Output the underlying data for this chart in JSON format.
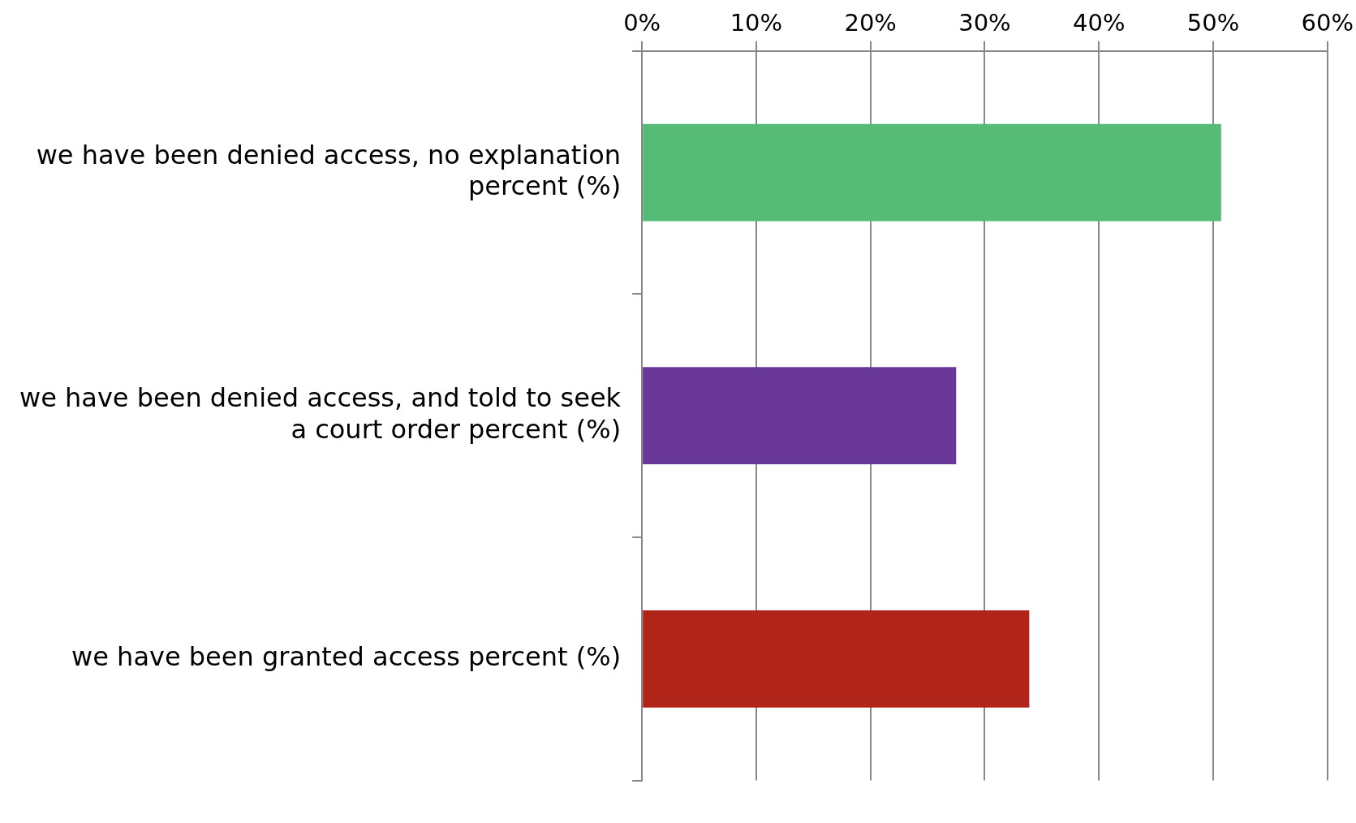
{
  "chart_data": {
    "type": "bar",
    "orientation": "horizontal",
    "categories": [
      "we have been denied access, no explanation percent (%)",
      "we have been denied access, and told to seek a court order percent (%)",
      "we have been granted access percent (%)"
    ],
    "values": [
      50.7,
      27.5,
      33.9
    ],
    "colors": [
      "#55bb77",
      "#693899",
      "#b0241a"
    ],
    "xlim": [
      0,
      60
    ],
    "xticks": [
      {
        "value": 0,
        "label": "0%"
      },
      {
        "value": 10,
        "label": "10%"
      },
      {
        "value": 20,
        "label": "20%"
      },
      {
        "value": 30,
        "label": "30%"
      },
      {
        "value": 40,
        "label": "40%"
      },
      {
        "value": 50,
        "label": "50%"
      },
      {
        "value": 60,
        "label": "60%"
      }
    ],
    "grid": "x"
  }
}
